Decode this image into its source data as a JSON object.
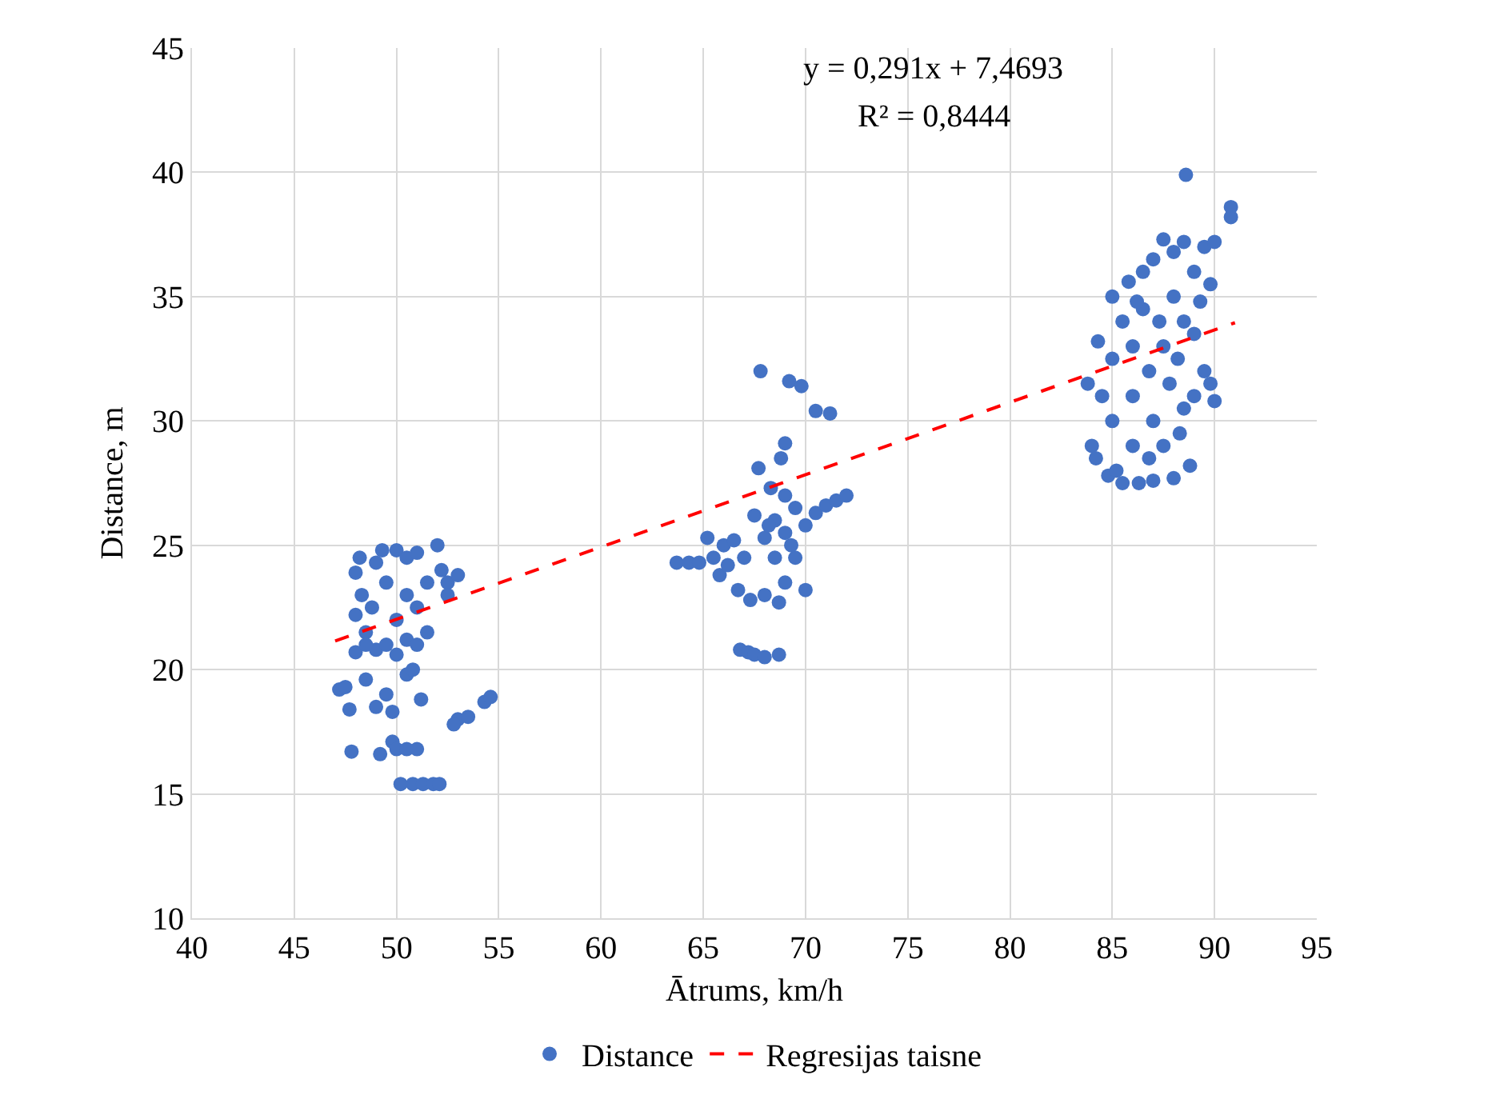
{
  "chart_data": {
    "type": "scatter",
    "xlabel": "Ātrums, km/h",
    "ylabel": "Distance, m",
    "xlim": [
      40,
      95
    ],
    "xticks": [
      40,
      45,
      50,
      55,
      60,
      65,
      70,
      75,
      80,
      85,
      90,
      95
    ],
    "ylim": [
      10,
      45
    ],
    "yticks": [
      10,
      15,
      20,
      25,
      30,
      35,
      40,
      45
    ],
    "grid": true,
    "legend": "bottom",
    "marker": "circle",
    "annotations": [
      "y = 0,291x + 7,4693",
      "R² = 0,8444"
    ],
    "series": [
      {
        "name": "Distance",
        "color": "#4472c4",
        "x": [
          47.2,
          47.5,
          47.8,
          47.7,
          48,
          48,
          48,
          48.3,
          48.5,
          48.5,
          48.8,
          49,
          49,
          49,
          49.2,
          49.5,
          49.5,
          49.5,
          49.8,
          49.8,
          50,
          50,
          50,
          50,
          50.2,
          50.5,
          50.5,
          50.5,
          50.5,
          50.5,
          50.8,
          51,
          51,
          51,
          51,
          51.3,
          51.5,
          51.5,
          51.8,
          52.1,
          52,
          52.2,
          52.5,
          52.5,
          53,
          53,
          52.8,
          53.5,
          54.3,
          54.6,
          49.3,
          48.2,
          50.8,
          51.2,
          48.5,
          63.7,
          64.3,
          64.8,
          65.2,
          65.5,
          65.8,
          66,
          66.2,
          66.5,
          66.7,
          66.8,
          67.2,
          67.5,
          68,
          68.7,
          67,
          67.3,
          67.5,
          67.7,
          67.8,
          68,
          68,
          68.3,
          68.5,
          68.5,
          68.8,
          68.7,
          69,
          69,
          69,
          69,
          69.2,
          69.5,
          69.5,
          69.8,
          70,
          70,
          70.5,
          71.2,
          70.5,
          71,
          71.5,
          72,
          69.3,
          68.2,
          83.8,
          84,
          84.2,
          84.3,
          84.5,
          84.8,
          85,
          85,
          85,
          85.2,
          85.5,
          85.5,
          85.8,
          86,
          86,
          86,
          86.3,
          86.5,
          86.5,
          86.8,
          86.8,
          87,
          87,
          87,
          87.3,
          87.5,
          87.5,
          87.5,
          87.8,
          88,
          88,
          88,
          88.2,
          88.5,
          88.5,
          88.5,
          88.6,
          88.8,
          89,
          89,
          89,
          89.3,
          89.5,
          89.5,
          89.8,
          90,
          90,
          89.8,
          90.8,
          90.8,
          88.3,
          86.2
        ],
        "values": [
          19.2,
          19.3,
          16.7,
          18.4,
          20.7,
          22.2,
          23.9,
          23,
          21.5,
          19.6,
          22.5,
          24.3,
          20.8,
          18.5,
          16.6,
          23.5,
          21,
          19,
          17.1,
          18.3,
          24.8,
          22,
          20.6,
          16.8,
          15.4,
          24.5,
          23,
          21.2,
          19.8,
          16.8,
          15.4,
          24.7,
          22.5,
          21,
          16.8,
          15.4,
          23.5,
          21.5,
          15.4,
          15.4,
          25,
          24,
          23.5,
          23,
          23.8,
          18,
          17.8,
          18.1,
          18.7,
          18.9,
          24.8,
          24.5,
          20,
          18.8,
          21,
          24.3,
          24.3,
          24.3,
          25.3,
          24.5,
          23.8,
          25,
          24.2,
          25.2,
          23.2,
          20.8,
          20.7,
          20.6,
          20.5,
          20.6,
          24.5,
          22.8,
          26.2,
          28.1,
          32,
          25.3,
          23,
          27.3,
          26,
          24.5,
          28.5,
          22.7,
          29.1,
          27,
          25.5,
          23.5,
          31.6,
          26.5,
          24.5,
          31.4,
          25.8,
          23.2,
          30.4,
          30.3,
          26.3,
          26.6,
          26.8,
          27,
          25,
          25.8,
          31.5,
          29,
          28.5,
          33.2,
          31,
          27.8,
          35,
          32.5,
          30,
          28,
          34,
          27.5,
          35.6,
          33,
          31,
          29,
          27.5,
          36,
          34.5,
          32,
          28.5,
          36.5,
          30,
          27.6,
          34,
          37.3,
          33,
          29,
          31.5,
          36.8,
          35,
          27.7,
          32.5,
          37.2,
          34,
          30.5,
          39.9,
          28.2,
          36,
          33.5,
          31,
          34.8,
          37,
          32,
          35.5,
          30.8,
          37.2,
          31.5,
          38.2,
          38.6,
          29.5,
          34.8
        ]
      },
      {
        "name": "Regresijas taisne",
        "color": "#ff0000",
        "type": "line",
        "line_style": "dashed",
        "marker": "none",
        "x": [
          47,
          91
        ],
        "values": [
          21.15,
          33.95
        ]
      }
    ]
  }
}
